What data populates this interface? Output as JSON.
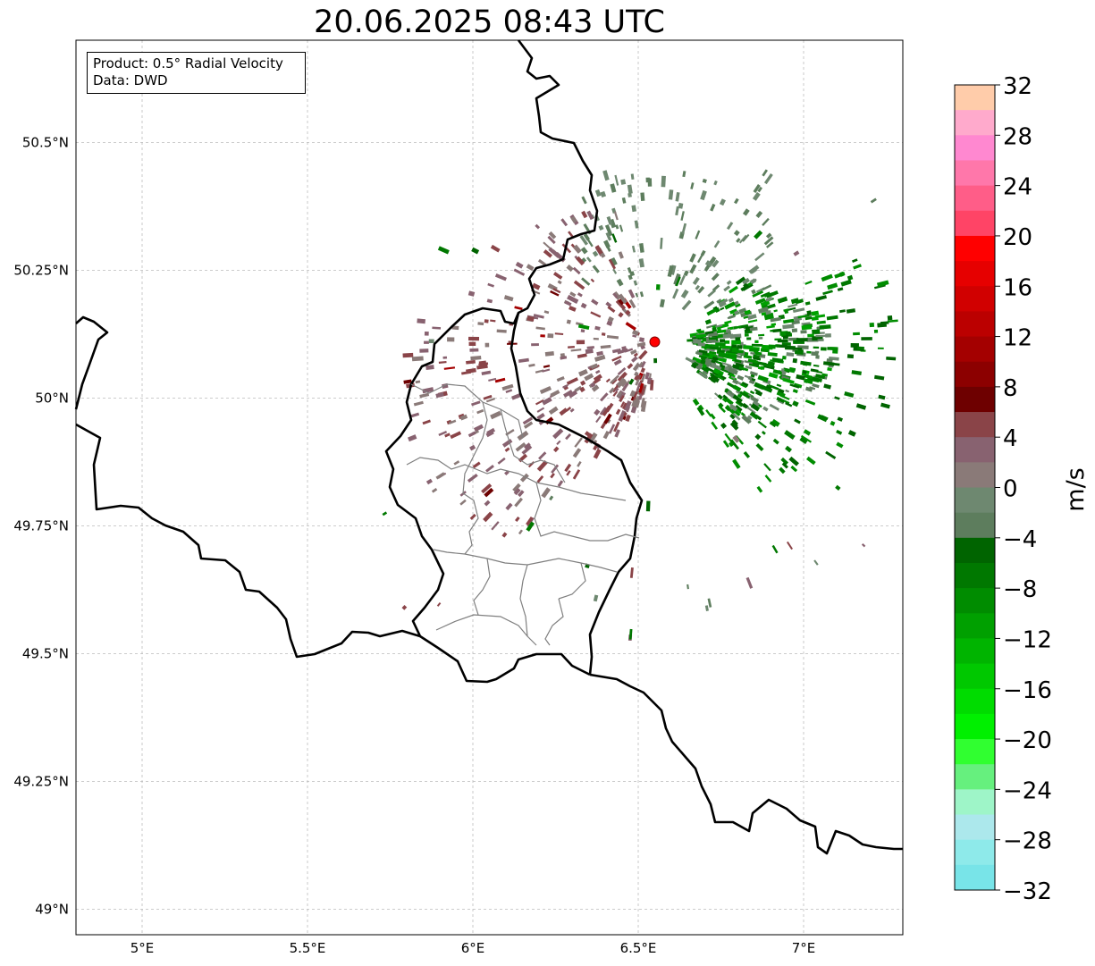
{
  "title": "20.06.2025 08:43 UTC",
  "info": {
    "product": "Product: 0.5° Radial Velocity",
    "data": "Data: DWD"
  },
  "map": {
    "lon_range": [
      4.8,
      7.3
    ],
    "lat_range": [
      48.95,
      50.7
    ],
    "x_ticks": [
      {
        "value": 5.0,
        "label": "5°E"
      },
      {
        "value": 5.5,
        "label": "5.5°E"
      },
      {
        "value": 6.0,
        "label": "6°E"
      },
      {
        "value": 6.5,
        "label": "6.5°E"
      },
      {
        "value": 7.0,
        "label": "7°E"
      }
    ],
    "y_ticks": [
      {
        "value": 50.5,
        "label": "50.5°N"
      },
      {
        "value": 50.25,
        "label": "50.25°N"
      },
      {
        "value": 50.0,
        "label": "50°N"
      },
      {
        "value": 49.75,
        "label": "49.75°N"
      },
      {
        "value": 49.5,
        "label": "49.5°N"
      },
      {
        "value": 49.25,
        "label": "49.25°N"
      },
      {
        "value": 49.0,
        "label": "49°N"
      }
    ],
    "gridlines": true,
    "radar_site": {
      "lon": 6.55,
      "lat": 50.11,
      "color": "#ff0000"
    }
  },
  "colorbar": {
    "label": "m/s",
    "min": -32,
    "max": 32,
    "ticks": [
      "32",
      "28",
      "24",
      "20",
      "16",
      "12",
      "8",
      "4",
      "0",
      "−4",
      "−8",
      "−12",
      "−16",
      "−20",
      "−24",
      "−28",
      "−32"
    ],
    "colors": [
      "#ffccaa",
      "#ffaacc",
      "#ff88d0",
      "#ff77aa",
      "#ff5d88",
      "#ff4466",
      "#ff0000",
      "#e60000",
      "#d10000",
      "#bb0000",
      "#a40000",
      "#8c0000",
      "#6e0000",
      "#8a4448",
      "#886270",
      "#8a7a78",
      "#6e8870",
      "#5d7d5d",
      "#006400",
      "#007800",
      "#008c00",
      "#00a000",
      "#00b400",
      "#00c800",
      "#00dc00",
      "#00f000",
      "#30ff30",
      "#66f07e",
      "#9ef5c8",
      "#ace8ec",
      "#8eeaea",
      "#78e4e8"
    ]
  }
}
